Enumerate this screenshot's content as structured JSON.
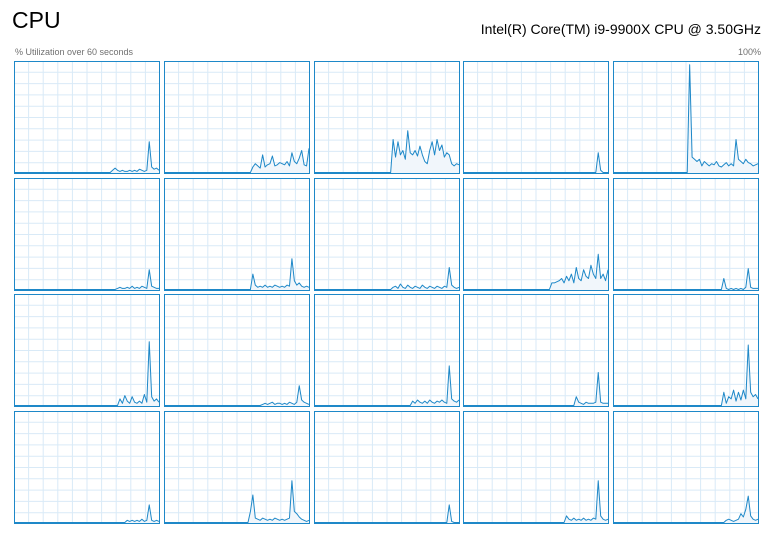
{
  "header": {
    "title": "CPU",
    "cpu_model": "Intel(R) Core(TM) i9-9900X CPU @ 3.50GHz",
    "util_label": "% Utilization over 60 seconds",
    "max_label": "100%"
  },
  "colors": {
    "line": "#1E88C8",
    "fill": "#F1F6FB",
    "grid": "#D9EAF7",
    "border": "#1E88C8"
  },
  "graphs": [
    {
      "name": "cpu-0",
      "values": [
        0,
        0,
        0,
        0,
        0,
        0,
        0,
        0,
        0,
        0,
        0,
        0,
        0,
        0,
        0,
        0,
        0,
        0,
        0,
        0,
        0,
        0,
        0,
        0,
        0,
        0,
        0,
        0,
        0,
        0,
        0,
        0,
        0,
        0,
        0,
        0,
        0,
        0,
        0,
        0,
        2,
        4,
        2,
        1,
        2,
        1,
        1,
        2,
        1,
        2,
        1,
        3,
        2,
        1,
        2,
        28,
        5,
        3,
        4,
        2
      ]
    },
    {
      "name": "cpu-1",
      "values": [
        0,
        0,
        0,
        0,
        0,
        0,
        0,
        0,
        0,
        0,
        0,
        0,
        0,
        0,
        0,
        0,
        0,
        0,
        0,
        0,
        0,
        0,
        0,
        0,
        0,
        0,
        0,
        0,
        0,
        0,
        0,
        0,
        0,
        0,
        0,
        0,
        5,
        8,
        6,
        4,
        16,
        5,
        7,
        8,
        15,
        6,
        7,
        9,
        8,
        7,
        10,
        6,
        18,
        10,
        8,
        13,
        20,
        7,
        6,
        22
      ]
    },
    {
      "name": "cpu-2",
      "values": [
        0,
        0,
        0,
        0,
        0,
        0,
        0,
        0,
        0,
        0,
        0,
        0,
        0,
        0,
        0,
        0,
        0,
        0,
        0,
        0,
        0,
        0,
        0,
        0,
        0,
        0,
        0,
        0,
        0,
        0,
        0,
        0,
        30,
        14,
        28,
        16,
        20,
        12,
        38,
        18,
        16,
        20,
        15,
        24,
        16,
        10,
        8,
        20,
        28,
        16,
        30,
        20,
        25,
        14,
        18,
        16,
        8,
        6,
        8,
        7
      ]
    },
    {
      "name": "cpu-3",
      "values": [
        0,
        0,
        0,
        0,
        0,
        0,
        0,
        0,
        0,
        0,
        0,
        0,
        0,
        0,
        0,
        0,
        0,
        0,
        0,
        0,
        0,
        0,
        0,
        0,
        0,
        0,
        0,
        0,
        0,
        0,
        0,
        0,
        0,
        0,
        0,
        0,
        0,
        0,
        0,
        0,
        0,
        0,
        0,
        0,
        0,
        0,
        0,
        0,
        0,
        0,
        0,
        0,
        0,
        0,
        0,
        18,
        2,
        0,
        0,
        0
      ]
    },
    {
      "name": "cpu-4",
      "values": [
        0,
        0,
        0,
        0,
        0,
        0,
        0,
        0,
        0,
        0,
        0,
        0,
        0,
        0,
        0,
        0,
        0,
        0,
        0,
        0,
        0,
        0,
        0,
        0,
        0,
        0,
        0,
        0,
        0,
        0,
        0,
        98,
        14,
        12,
        10,
        12,
        6,
        10,
        8,
        6,
        8,
        7,
        10,
        6,
        5,
        7,
        9,
        6,
        8,
        6,
        30,
        12,
        10,
        8,
        12,
        9,
        8,
        6,
        7,
        8
      ]
    },
    {
      "name": "cpu-5",
      "values": [
        0,
        0,
        0,
        0,
        0,
        0,
        0,
        0,
        0,
        0,
        0,
        0,
        0,
        0,
        0,
        0,
        0,
        0,
        0,
        0,
        0,
        0,
        0,
        0,
        0,
        0,
        0,
        0,
        0,
        0,
        0,
        0,
        0,
        0,
        0,
        0,
        0,
        0,
        0,
        0,
        0,
        0,
        1,
        2,
        1,
        1,
        2,
        1,
        3,
        1,
        2,
        1,
        3,
        2,
        1,
        18,
        3,
        2,
        1,
        1
      ]
    },
    {
      "name": "cpu-6",
      "values": [
        0,
        0,
        0,
        0,
        0,
        0,
        0,
        0,
        0,
        0,
        0,
        0,
        0,
        0,
        0,
        0,
        0,
        0,
        0,
        0,
        0,
        0,
        0,
        0,
        0,
        0,
        0,
        0,
        0,
        0,
        0,
        0,
        0,
        0,
        0,
        0,
        14,
        4,
        2,
        3,
        2,
        4,
        2,
        3,
        2,
        4,
        3,
        2,
        3,
        2,
        4,
        3,
        28,
        8,
        4,
        6,
        3,
        2,
        3,
        2
      ]
    },
    {
      "name": "cpu-7",
      "values": [
        0,
        0,
        0,
        0,
        0,
        0,
        0,
        0,
        0,
        0,
        0,
        0,
        0,
        0,
        0,
        0,
        0,
        0,
        0,
        0,
        0,
        0,
        0,
        0,
        0,
        0,
        0,
        0,
        0,
        0,
        0,
        0,
        2,
        3,
        1,
        5,
        2,
        1,
        4,
        2,
        1,
        3,
        2,
        1,
        4,
        2,
        1,
        3,
        2,
        1,
        3,
        2,
        1,
        3,
        2,
        20,
        4,
        2,
        1,
        2
      ]
    },
    {
      "name": "cpu-8",
      "values": [
        0,
        0,
        0,
        0,
        0,
        0,
        0,
        0,
        0,
        0,
        0,
        0,
        0,
        0,
        0,
        0,
        0,
        0,
        0,
        0,
        0,
        0,
        0,
        0,
        0,
        0,
        0,
        0,
        0,
        0,
        0,
        0,
        0,
        0,
        0,
        0,
        6,
        6,
        7,
        8,
        10,
        6,
        12,
        8,
        14,
        6,
        20,
        10,
        8,
        18,
        12,
        10,
        22,
        14,
        10,
        32,
        10,
        14,
        8,
        18
      ]
    },
    {
      "name": "cpu-9",
      "values": [
        0,
        0,
        0,
        0,
        0,
        0,
        0,
        0,
        0,
        0,
        0,
        0,
        0,
        0,
        0,
        0,
        0,
        0,
        0,
        0,
        0,
        0,
        0,
        0,
        0,
        0,
        0,
        0,
        0,
        0,
        0,
        0,
        0,
        0,
        0,
        0,
        0,
        0,
        0,
        0,
        0,
        0,
        0,
        0,
        0,
        10,
        1,
        0,
        1,
        0,
        1,
        0,
        1,
        0,
        2,
        19,
        2,
        1,
        1,
        1
      ]
    },
    {
      "name": "cpu-10",
      "values": [
        0,
        0,
        0,
        0,
        0,
        0,
        0,
        0,
        0,
        0,
        0,
        0,
        0,
        0,
        0,
        0,
        0,
        0,
        0,
        0,
        0,
        0,
        0,
        0,
        0,
        0,
        0,
        0,
        0,
        0,
        0,
        0,
        0,
        0,
        0,
        0,
        0,
        0,
        0,
        0,
        0,
        0,
        0,
        6,
        2,
        9,
        4,
        2,
        8,
        3,
        2,
        4,
        2,
        10,
        3,
        58,
        8,
        4,
        6,
        3
      ]
    },
    {
      "name": "cpu-11",
      "values": [
        0,
        0,
        0,
        0,
        0,
        0,
        0,
        0,
        0,
        0,
        0,
        0,
        0,
        0,
        0,
        0,
        0,
        0,
        0,
        0,
        0,
        0,
        0,
        0,
        0,
        0,
        0,
        0,
        0,
        0,
        0,
        0,
        0,
        0,
        0,
        0,
        0,
        0,
        0,
        0,
        1,
        2,
        1,
        2,
        3,
        1,
        2,
        2,
        1,
        2,
        1,
        3,
        2,
        1,
        3,
        18,
        5,
        3,
        2,
        1
      ]
    },
    {
      "name": "cpu-12",
      "values": [
        0,
        0,
        0,
        0,
        0,
        0,
        0,
        0,
        0,
        0,
        0,
        0,
        0,
        0,
        0,
        0,
        0,
        0,
        0,
        0,
        0,
        0,
        0,
        0,
        0,
        0,
        0,
        0,
        0,
        0,
        0,
        0,
        0,
        0,
        0,
        0,
        0,
        0,
        0,
        0,
        4,
        2,
        5,
        3,
        2,
        4,
        2,
        5,
        3,
        2,
        4,
        3,
        5,
        3,
        2,
        36,
        6,
        4,
        3,
        5
      ]
    },
    {
      "name": "cpu-13",
      "values": [
        0,
        0,
        0,
        0,
        0,
        0,
        0,
        0,
        0,
        0,
        0,
        0,
        0,
        0,
        0,
        0,
        0,
        0,
        0,
        0,
        0,
        0,
        0,
        0,
        0,
        0,
        0,
        0,
        0,
        0,
        0,
        0,
        0,
        0,
        0,
        0,
        0,
        0,
        0,
        0,
        0,
        0,
        0,
        0,
        0,
        0,
        8,
        3,
        2,
        1,
        3,
        2,
        2,
        2,
        3,
        30,
        3,
        2,
        2,
        2
      ]
    },
    {
      "name": "cpu-14",
      "values": [
        0,
        0,
        0,
        0,
        0,
        0,
        0,
        0,
        0,
        0,
        0,
        0,
        0,
        0,
        0,
        0,
        0,
        0,
        0,
        0,
        0,
        0,
        0,
        0,
        0,
        0,
        0,
        0,
        0,
        0,
        0,
        0,
        0,
        0,
        0,
        0,
        0,
        0,
        0,
        0,
        0,
        0,
        0,
        0,
        0,
        12,
        2,
        8,
        6,
        14,
        4,
        12,
        5,
        14,
        6,
        55,
        12,
        8,
        10,
        6
      ]
    },
    {
      "name": "cpu-15",
      "values": [
        0,
        0,
        0,
        0,
        0,
        0,
        0,
        0,
        0,
        0,
        0,
        0,
        0,
        0,
        0,
        0,
        0,
        0,
        0,
        0,
        0,
        0,
        0,
        0,
        0,
        0,
        0,
        0,
        0,
        0,
        0,
        0,
        0,
        0,
        0,
        0,
        0,
        0,
        0,
        0,
        0,
        0,
        0,
        0,
        0,
        0,
        2,
        1,
        2,
        1,
        2,
        1,
        3,
        1,
        2,
        16,
        2,
        1,
        2,
        1
      ]
    },
    {
      "name": "cpu-16",
      "values": [
        0,
        0,
        0,
        0,
        0,
        0,
        0,
        0,
        0,
        0,
        0,
        0,
        0,
        0,
        0,
        0,
        0,
        0,
        0,
        0,
        0,
        0,
        0,
        0,
        0,
        0,
        0,
        0,
        0,
        0,
        0,
        0,
        0,
        0,
        0,
        10,
        25,
        4,
        3,
        2,
        4,
        3,
        2,
        3,
        2,
        4,
        3,
        2,
        3,
        2,
        3,
        4,
        38,
        10,
        8,
        5,
        3,
        2,
        1,
        2
      ]
    },
    {
      "name": "cpu-17",
      "values": [
        0,
        0,
        0,
        0,
        0,
        0,
        0,
        0,
        0,
        0,
        0,
        0,
        0,
        0,
        0,
        0,
        0,
        0,
        0,
        0,
        0,
        0,
        0,
        0,
        0,
        0,
        0,
        0,
        0,
        0,
        0,
        0,
        0,
        0,
        0,
        0,
        0,
        0,
        0,
        0,
        0,
        0,
        0,
        0,
        0,
        0,
        0,
        0,
        0,
        0,
        0,
        0,
        0,
        0,
        0,
        16,
        1,
        0,
        0,
        0
      ]
    },
    {
      "name": "cpu-18",
      "values": [
        0,
        0,
        0,
        0,
        0,
        0,
        0,
        0,
        0,
        0,
        0,
        0,
        0,
        0,
        0,
        0,
        0,
        0,
        0,
        0,
        0,
        0,
        0,
        0,
        0,
        0,
        0,
        0,
        0,
        0,
        0,
        0,
        0,
        0,
        0,
        0,
        0,
        0,
        0,
        0,
        0,
        0,
        6,
        3,
        2,
        4,
        2,
        3,
        2,
        4,
        2,
        3,
        2,
        4,
        3,
        38,
        6,
        3,
        2,
        3
      ]
    },
    {
      "name": "cpu-19",
      "values": [
        0,
        0,
        0,
        0,
        0,
        0,
        0,
        0,
        0,
        0,
        0,
        0,
        0,
        0,
        0,
        0,
        0,
        0,
        0,
        0,
        0,
        0,
        0,
        0,
        0,
        0,
        0,
        0,
        0,
        0,
        0,
        0,
        0,
        0,
        0,
        0,
        0,
        0,
        0,
        0,
        0,
        0,
        0,
        0,
        0,
        0,
        2,
        3,
        2,
        1,
        2,
        3,
        8,
        5,
        12,
        24,
        6,
        3,
        2,
        3
      ]
    }
  ]
}
